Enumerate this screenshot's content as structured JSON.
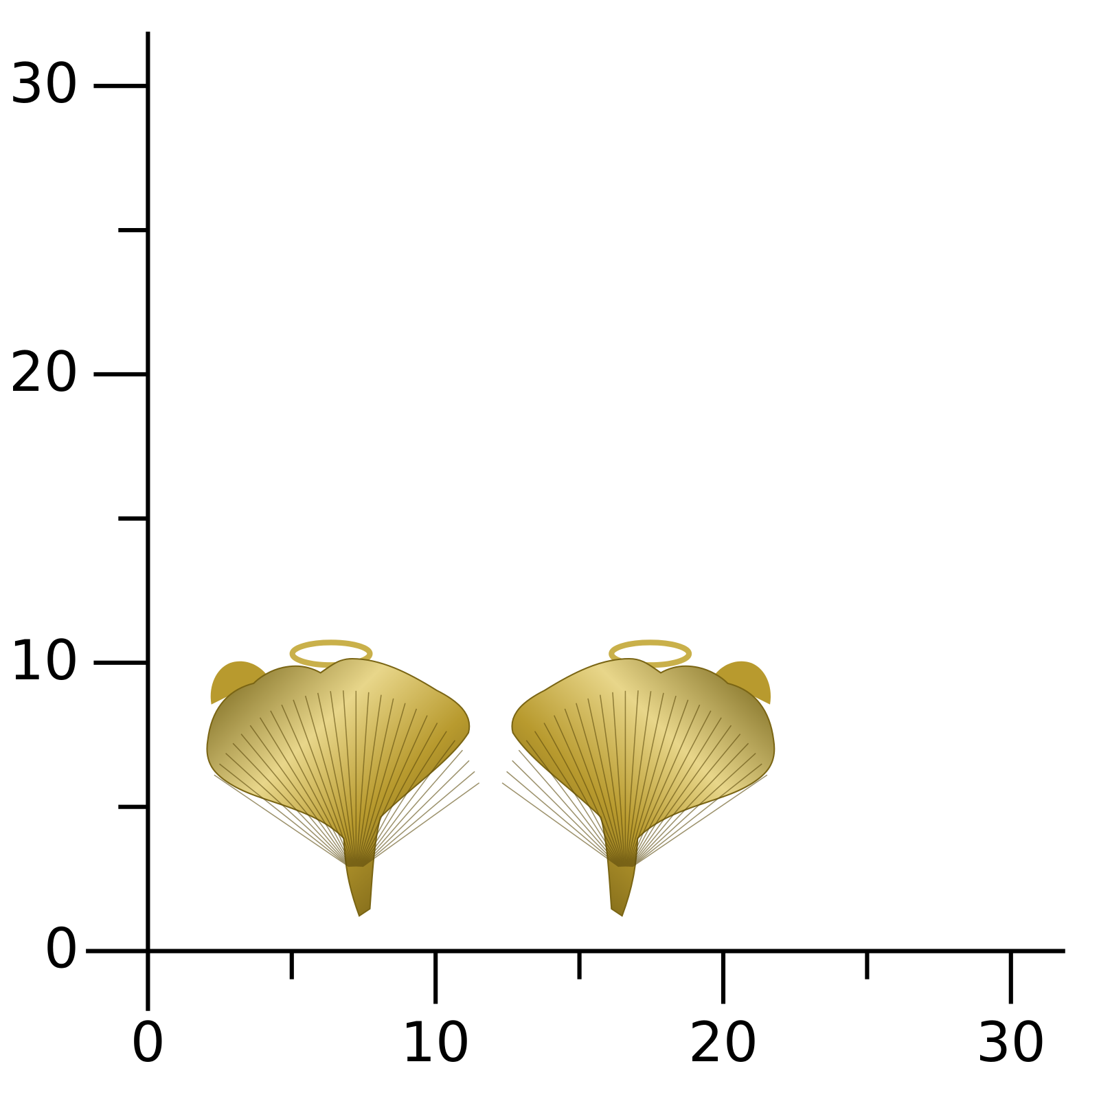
{
  "x_axis": {
    "ticks": [
      0,
      10,
      20,
      30
    ]
  },
  "y_axis": {
    "ticks": [
      0,
      10,
      20,
      30
    ]
  }
}
